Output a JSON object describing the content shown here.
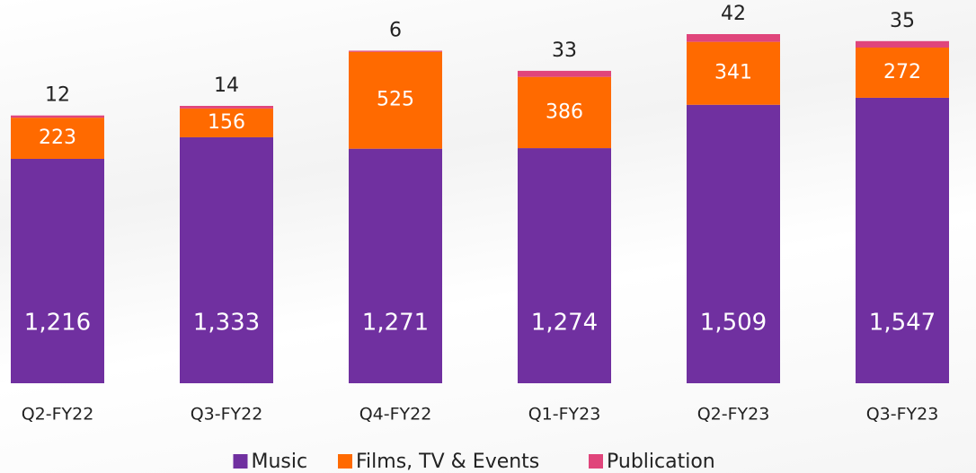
{
  "chart_data": {
    "type": "stacked-bar",
    "categories": [
      "Q2-FY22",
      "Q3-FY22",
      "Q4-FY22",
      "Q1-FY23",
      "Q2-FY23",
      "Q3-FY23"
    ],
    "series": [
      {
        "name": "Music",
        "color": "#7030a0",
        "values": [
          1216,
          1333,
          1271,
          1274,
          1509,
          1547
        ],
        "value_labels": [
          "1,216",
          "1,333",
          "1,271",
          "1,274",
          "1,509",
          "1,547"
        ]
      },
      {
        "name": "Films, TV & Events",
        "color": "#ff6a00",
        "values": [
          223,
          156,
          525,
          386,
          341,
          272
        ]
      },
      {
        "name": "Publication",
        "color": "#e0457b",
        "values": [
          12,
          14,
          6,
          33,
          42,
          35
        ]
      }
    ],
    "legend": "bottom"
  }
}
